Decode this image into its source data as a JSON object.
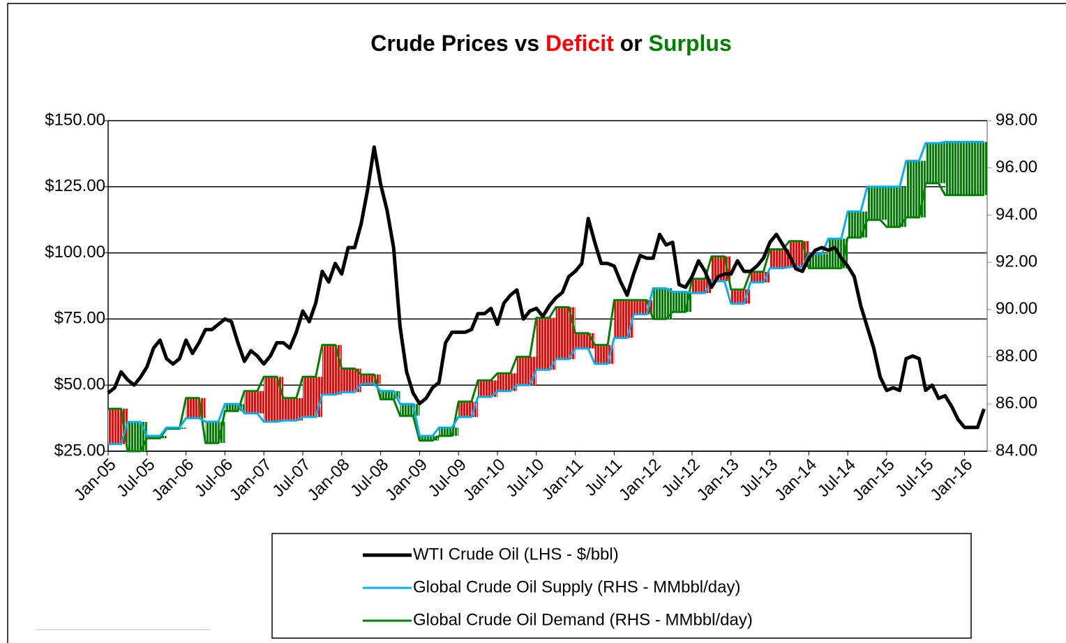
{
  "chart_data": {
    "type": "line",
    "title": [
      {
        "text": "Crude Prices vs",
        "color": "#000000"
      },
      {
        "text": "Deficit",
        "color": "#ff0000"
      },
      {
        "text": "or",
        "color": "#000000"
      },
      {
        "text": "Surplus",
        "color": "#008000"
      }
    ],
    "categories": [
      "Jan-05",
      null,
      null,
      null,
      null,
      null,
      "Jul-05",
      null,
      null,
      null,
      null,
      null,
      "Jan-06",
      null,
      null,
      null,
      null,
      null,
      "Jul-06",
      null,
      null,
      null,
      null,
      null,
      "Jan-07",
      null,
      null,
      null,
      null,
      null,
      "Jul-07",
      null,
      null,
      null,
      null,
      null,
      "Jan-08",
      null,
      null,
      null,
      null,
      null,
      "Jul-08",
      null,
      null,
      null,
      null,
      null,
      "Jan-09",
      null,
      null,
      null,
      null,
      null,
      "Jul-09",
      null,
      null,
      null,
      null,
      null,
      "Jan-10",
      null,
      null,
      null,
      null,
      null,
      "Jul-10",
      null,
      null,
      null,
      null,
      null,
      "Jan-11",
      null,
      null,
      null,
      null,
      null,
      "Jul-11",
      null,
      null,
      null,
      null,
      null,
      "Jan-12",
      null,
      null,
      null,
      null,
      null,
      "Jul-12",
      null,
      null,
      null,
      null,
      null,
      "Jan-13",
      null,
      null,
      null,
      null,
      null,
      "Jul-13",
      null,
      null,
      null,
      null,
      null,
      "Jan-14",
      null,
      null,
      null,
      null,
      null,
      "Jul-14",
      null,
      null,
      null,
      null,
      null,
      "Jan-15",
      null,
      null,
      null,
      null,
      null,
      "Jul-15",
      null,
      null,
      null,
      null,
      null,
      "Jan-16",
      null,
      null,
      null
    ],
    "series": [
      {
        "name": "WTI Crude Oil (LHS - $/bbl)",
        "color": "#000000",
        "axis": "y",
        "values": [
          47,
          49,
          55,
          52,
          50,
          53,
          57,
          64,
          67,
          60,
          58,
          60,
          67,
          62,
          66,
          71,
          71,
          73,
          75,
          74,
          66,
          59,
          63,
          61,
          58,
          61,
          66,
          66,
          64,
          70,
          78,
          74,
          81,
          93,
          89,
          96,
          92,
          102,
          102,
          111,
          124,
          140,
          126,
          116,
          102,
          72,
          55,
          47,
          43,
          45,
          49,
          51,
          66,
          70,
          70,
          70,
          71,
          77,
          77,
          79,
          73,
          81,
          84,
          86,
          75,
          78,
          79,
          76,
          80,
          83,
          85,
          91,
          93,
          96,
          113,
          104,
          96,
          96,
          95,
          89,
          84,
          92,
          99,
          98,
          98,
          107,
          103,
          104,
          88,
          87,
          91,
          97,
          93,
          87,
          91,
          92,
          92,
          97,
          93,
          93,
          95,
          98,
          104,
          107,
          103,
          99,
          94,
          93,
          98,
          101,
          102,
          101,
          102,
          98,
          95,
          91,
          80,
          72,
          64,
          53,
          48,
          49,
          48,
          60,
          61,
          60,
          48,
          50,
          45,
          46,
          42,
          37,
          34,
          34,
          34,
          41
        ]
      },
      {
        "name": "Global Crude Oil Supply (RHS - MMbbl/day)",
        "color": "#00b0f0",
        "axis": "y2",
        "values": [
          84.3,
          84.3,
          84.3,
          85.24,
          85.24,
          85.24,
          84.65,
          84.65,
          84.65,
          85,
          85,
          85,
          85.4,
          85.4,
          85.4,
          85.25,
          85.25,
          85.25,
          86,
          86,
          86,
          85.6,
          85.6,
          85.6,
          85.25,
          85.25,
          85.25,
          85.3,
          85.3,
          85.3,
          85.45,
          85.45,
          85.45,
          86.4,
          86.4,
          86.4,
          86.5,
          86.5,
          86.5,
          86.85,
          86.85,
          86.85,
          86.55,
          86.55,
          86.55,
          86,
          86,
          86,
          84.65,
          84.65,
          84.65,
          85,
          85,
          85,
          85.45,
          85.45,
          85.45,
          86.3,
          86.3,
          86.3,
          86.55,
          86.55,
          86.55,
          86.8,
          86.8,
          86.8,
          87.45,
          87.45,
          87.45,
          87.9,
          87.9,
          87.9,
          88.35,
          88.35,
          88.35,
          87.7,
          87.7,
          87.7,
          88.8,
          88.8,
          88.8,
          89.8,
          89.8,
          89.8,
          90.9,
          90.9,
          90.9,
          90.75,
          90.75,
          90.75,
          90.7,
          90.7,
          90.7,
          91.2,
          91.2,
          91.2,
          90.25,
          90.25,
          90.25,
          91.15,
          91.15,
          91.15,
          91.75,
          91.75,
          91.75,
          91.8,
          91.8,
          91.8,
          92.35,
          92.35,
          92.35,
          93,
          93,
          93,
          94.15,
          94.15,
          94.15,
          95.2,
          95.2,
          95.2,
          95.2,
          95.2,
          95.2,
          96.3,
          96.3,
          96.3,
          97.05,
          97.05,
          97.05,
          97.1,
          97.1,
          97.1,
          97.1,
          97.1,
          97.1,
          97.1
        ]
      },
      {
        "name": "Global Crude Oil Demand (RHS  - MMbbl/day)",
        "color": "#008000",
        "axis": "y2",
        "values": [
          85.8,
          85.8,
          85.8,
          84,
          84,
          84,
          84.55,
          84.55,
          84.55,
          84.95,
          84.95,
          84.95,
          86.25,
          86.25,
          86.25,
          84.35,
          84.35,
          84.35,
          85.7,
          85.7,
          85.7,
          86.55,
          86.55,
          86.55,
          87.15,
          87.15,
          87.15,
          86.25,
          86.25,
          86.25,
          87.15,
          87.15,
          87.15,
          88.5,
          88.5,
          88.5,
          87.5,
          87.5,
          87.5,
          87.25,
          87.25,
          87.25,
          86.2,
          86.2,
          86.2,
          85.5,
          85.5,
          85.5,
          84.45,
          84.45,
          84.45,
          84.65,
          84.65,
          84.65,
          86.1,
          86.1,
          86.1,
          87,
          87,
          87,
          87.3,
          87.3,
          87.3,
          88,
          88,
          88,
          89.65,
          89.65,
          89.65,
          90.1,
          90.1,
          90.1,
          89,
          89,
          89,
          88.5,
          88.5,
          88.5,
          90.4,
          90.4,
          90.4,
          90.4,
          90.4,
          90.4,
          89.6,
          89.6,
          89.6,
          89.9,
          89.9,
          89.9,
          91.3,
          91.3,
          91.3,
          92.25,
          92.25,
          92.25,
          90.85,
          90.85,
          90.85,
          91.6,
          91.6,
          91.6,
          92.55,
          92.55,
          92.55,
          92.9,
          92.9,
          92.9,
          91.75,
          91.75,
          91.75,
          91.75,
          91.75,
          91.75,
          93.05,
          93.05,
          93.05,
          93.8,
          93.8,
          93.8,
          93.5,
          93.5,
          93.5,
          93.9,
          93.9,
          93.9,
          95.35,
          95.35,
          95.35,
          94.85,
          94.85,
          94.85,
          94.85,
          94.85,
          94.85,
          94.85
        ]
      }
    ],
    "deficit_color": "#ff0000",
    "surplus_color": "#008000",
    "ylim": [
      25,
      150
    ],
    "yticks": [
      {
        "value": 25,
        "label": "$25.00"
      },
      {
        "value": 50,
        "label": "$50.00"
      },
      {
        "value": 75,
        "label": "$75.00"
      },
      {
        "value": 100,
        "label": "$100.00"
      },
      {
        "value": 125,
        "label": "$125.00"
      },
      {
        "value": 150,
        "label": "$150.00"
      }
    ],
    "y2lim": [
      84,
      98
    ],
    "y2ticks": [
      {
        "value": 84,
        "label": "84.00"
      },
      {
        "value": 86,
        "label": "86.00"
      },
      {
        "value": 88,
        "label": "88.00"
      },
      {
        "value": 90,
        "label": "90.00"
      },
      {
        "value": 92,
        "label": "92.00"
      },
      {
        "value": 94,
        "label": "94.00"
      },
      {
        "value": 96,
        "label": "96.00"
      },
      {
        "value": 98,
        "label": "98.00"
      }
    ],
    "grid": true,
    "legend": "bottom"
  }
}
